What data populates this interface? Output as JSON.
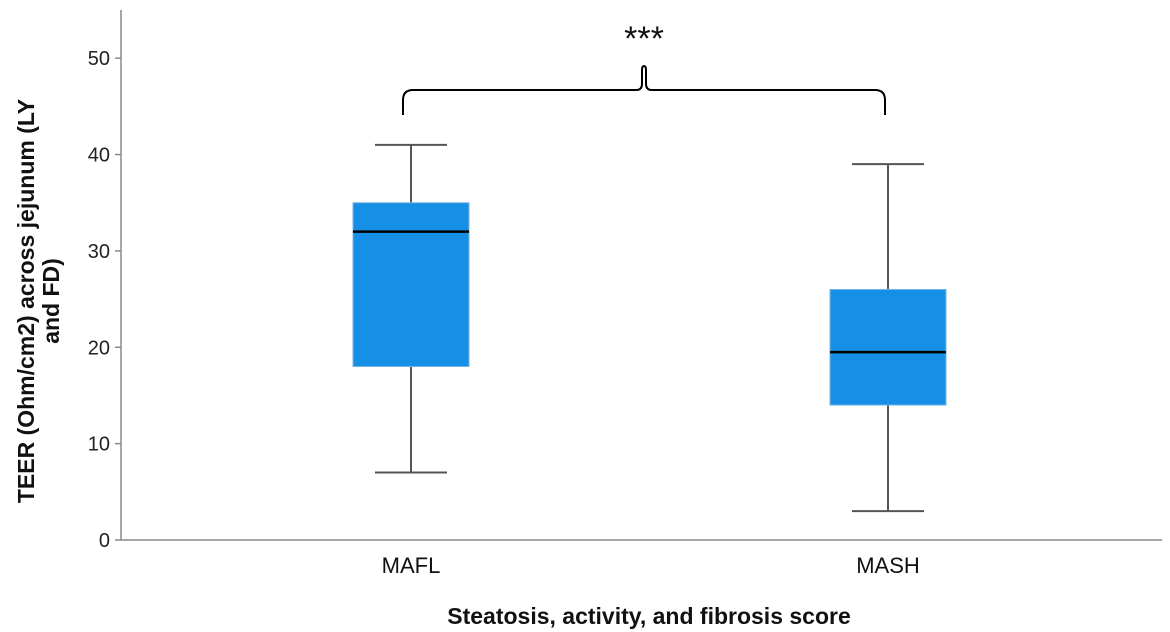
{
  "chart_data": {
    "type": "boxplot",
    "title": "",
    "xlabel": "Steatosis, activity, and fibrosis score",
    "ylabel_lines": [
      "TEER (Ohm/cm2) across jejunum (LY",
      "and FD)"
    ],
    "ylim": [
      0,
      55
    ],
    "yticks": [
      0,
      10,
      20,
      30,
      40,
      50
    ],
    "grid": false,
    "box_color": "#1590E6",
    "categories": [
      "MAFL",
      "MASH"
    ],
    "boxes": [
      {
        "category": "MAFL",
        "whisker_low": 7,
        "q1": 18,
        "median": 32,
        "q3": 35,
        "whisker_high": 41
      },
      {
        "category": "MASH",
        "whisker_low": 3,
        "q1": 14,
        "median": 19.5,
        "q3": 26,
        "whisker_high": 39
      }
    ],
    "annotations": [
      {
        "type": "significance-bracket",
        "between": [
          "MAFL",
          "MASH"
        ],
        "label": "***"
      }
    ]
  }
}
